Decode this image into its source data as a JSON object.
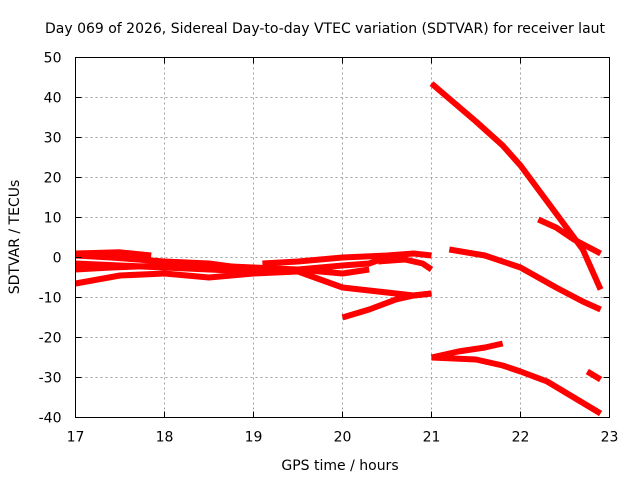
{
  "chart_data": {
    "type": "line",
    "title": "Day 069 of 2026, Sidereal Day-to-day VTEC variation (SDTVAR) for receiver laut",
    "xlabel": "GPS time / hours",
    "ylabel": "SDTVAR / TECUs",
    "xlim": [
      17,
      23
    ],
    "ylim": [
      -40,
      50
    ],
    "x_ticks": [
      "17",
      "18",
      "19",
      "20",
      "21",
      "22",
      "23"
    ],
    "y_ticks": [
      "50",
      "40",
      "30",
      "20",
      "10",
      "0",
      "-10",
      "-20",
      "-30",
      "-40"
    ],
    "grid": true,
    "legend": "none",
    "color": "#ff0000",
    "series": [
      {
        "x": [
          17.0,
          17.5,
          17.85
        ],
        "y": [
          1.0,
          1.3,
          0.5
        ]
      },
      {
        "x": [
          17.0,
          17.4,
          18.0,
          18.5,
          19.0
        ],
        "y": [
          0.5,
          0.0,
          -1.0,
          -1.5,
          -3.0
        ]
      },
      {
        "x": [
          17.0,
          17.5,
          18.0,
          18.5,
          19.0,
          19.5,
          20.0,
          20.3,
          20.55
        ],
        "y": [
          -1.5,
          -2.0,
          -2.5,
          -3.0,
          -3.5,
          -3.0,
          -2.0,
          -1.5,
          0.5
        ]
      },
      {
        "x": [
          17.0,
          17.4,
          18.0,
          18.5,
          19.0,
          19.5,
          20.0,
          20.3
        ],
        "y": [
          -3.0,
          -2.5,
          -2.0,
          -2.0,
          -2.5,
          -3.0,
          -4.0,
          -3.0
        ]
      },
      {
        "x": [
          17.0,
          17.5,
          18.0,
          18.5,
          19.0,
          19.5
        ],
        "y": [
          -6.5,
          -4.5,
          -4.0,
          -5.0,
          -4.0,
          -3.5
        ]
      },
      {
        "x": [
          19.1,
          19.5,
          20.0,
          20.5,
          20.8,
          21.0
        ],
        "y": [
          -1.5,
          -1.0,
          0.0,
          0.5,
          1.0,
          0.5
        ]
      },
      {
        "x": [
          19.0,
          19.5,
          20.0,
          20.4,
          20.8,
          21.0
        ],
        "y": [
          -3.0,
          -3.5,
          -7.5,
          -8.5,
          -9.5,
          -9.0
        ]
      },
      {
        "x": [
          20.0,
          20.3,
          20.6,
          20.8,
          21.0
        ],
        "y": [
          -15.0,
          -13.0,
          -10.5,
          -9.5,
          -9.0
        ]
      },
      {
        "x": [
          20.4,
          20.7,
          20.9,
          21.0
        ],
        "y": [
          -1.0,
          -0.5,
          -1.5,
          -3.0
        ]
      },
      {
        "x": [
          21.0,
          21.5,
          21.8,
          22.0,
          22.2,
          22.5,
          22.7,
          22.9
        ],
        "y": [
          43.5,
          34.0,
          28.0,
          23.0,
          17.0,
          8.0,
          2.0,
          -8.0
        ]
      },
      {
        "x": [
          21.2,
          21.6,
          22.0,
          22.4,
          22.7,
          22.9
        ],
        "y": [
          2.0,
          0.5,
          -2.5,
          -7.5,
          -11.0,
          -13.0
        ]
      },
      {
        "x": [
          22.2,
          22.4,
          22.6,
          22.9
        ],
        "y": [
          9.5,
          7.5,
          4.5,
          1.0
        ]
      },
      {
        "x": [
          21.0,
          21.3,
          21.6,
          21.8
        ],
        "y": [
          -25.0,
          -23.5,
          -22.5,
          -21.5
        ]
      },
      {
        "x": [
          21.0,
          21.5,
          21.8,
          22.0,
          22.3,
          22.6,
          22.9
        ],
        "y": [
          -25.0,
          -25.5,
          -27.0,
          -28.5,
          -31.0,
          -35.0,
          -39.0
        ]
      },
      {
        "x": [
          22.75,
          22.9
        ],
        "y": [
          -28.5,
          -30.5
        ]
      }
    ]
  }
}
